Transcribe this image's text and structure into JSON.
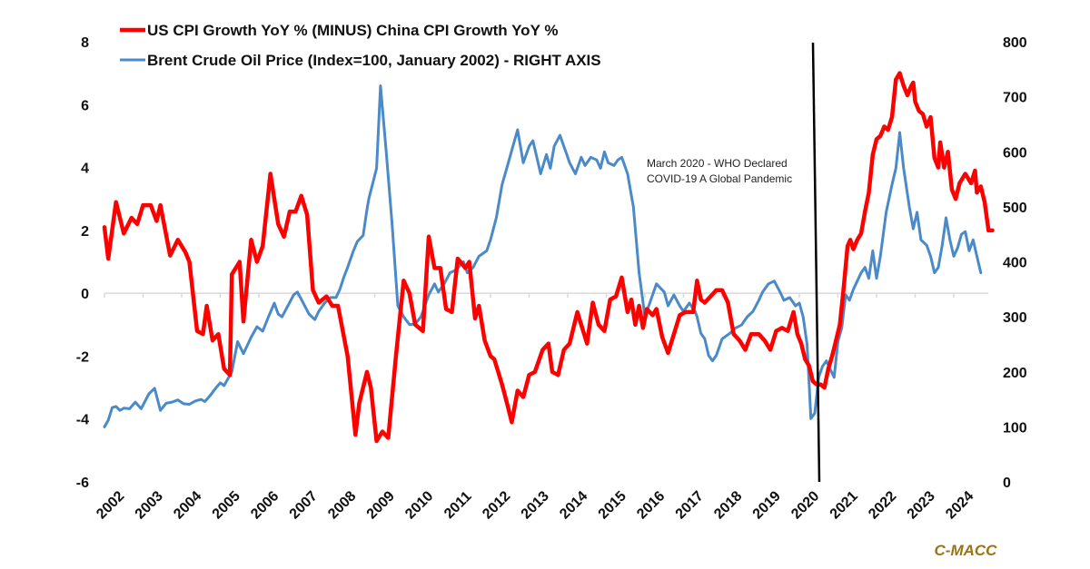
{
  "chart_data": {
    "type": "line",
    "title": "",
    "xlabel": "",
    "ylabel": "",
    "x_tick_labels": [
      "2002",
      "2003",
      "2004",
      "2005",
      "2006",
      "2007",
      "2008",
      "2009",
      "2010",
      "2011",
      "2012",
      "2013",
      "2014",
      "2015",
      "2016",
      "2017",
      "2018",
      "2019",
      "2020",
      "2021",
      "2022",
      "2023",
      "2024"
    ],
    "xlim": [
      2002,
      2024.9
    ],
    "y_left": {
      "ylim": [
        -6,
        8
      ],
      "ticks": [
        "8",
        "6",
        "4",
        "2",
        "0",
        "-2",
        "-4",
        "-6"
      ]
    },
    "y_right": {
      "ylim": [
        0,
        800
      ],
      "ticks": [
        "800",
        "700",
        "600",
        "500",
        "400",
        "300",
        "200",
        "100",
        "0"
      ]
    },
    "grid": false,
    "legend_position": "top-left",
    "legend": [
      {
        "name": "US CPI Growth YoY % (MINUS) China CPI Growth YoY %",
        "color": "#ff0000"
      },
      {
        "name": "Brent Crude Oil Price (Index=100, January 2002) - RIGHT AXIS",
        "color": "#4a8ac8"
      }
    ],
    "annotation": {
      "lines": [
        "March 2020 - WHO Declared",
        "COVID-19 A Global Pandemic"
      ],
      "x_value": 2020.2
    },
    "watermark": "C-MACC",
    "series": [
      {
        "name": "US CPI Growth YoY % (MINUS) China CPI Growth YoY %",
        "axis": "left",
        "color": "#ff0000",
        "points": [
          [
            2002.0,
            2.1
          ],
          [
            2002.1,
            1.1
          ],
          [
            2002.3,
            2.9
          ],
          [
            2002.5,
            1.9
          ],
          [
            2002.7,
            2.4
          ],
          [
            2002.85,
            2.2
          ],
          [
            2003.0,
            2.8
          ],
          [
            2003.2,
            2.8
          ],
          [
            2003.35,
            2.3
          ],
          [
            2003.45,
            2.8
          ],
          [
            2003.7,
            1.2
          ],
          [
            2003.9,
            1.7
          ],
          [
            2004.1,
            1.3
          ],
          [
            2004.2,
            1.0
          ],
          [
            2004.4,
            -1.2
          ],
          [
            2004.55,
            -1.3
          ],
          [
            2004.65,
            -0.4
          ],
          [
            2004.8,
            -1.5
          ],
          [
            2004.95,
            -1.3
          ],
          [
            2005.1,
            -2.4
          ],
          [
            2005.25,
            -2.6
          ],
          [
            2005.3,
            0.6
          ],
          [
            2005.5,
            1.0
          ],
          [
            2005.6,
            -0.9
          ],
          [
            2005.8,
            1.7
          ],
          [
            2005.95,
            1.0
          ],
          [
            2006.1,
            1.5
          ],
          [
            2006.3,
            3.8
          ],
          [
            2006.5,
            2.2
          ],
          [
            2006.65,
            1.8
          ],
          [
            2006.8,
            2.6
          ],
          [
            2006.95,
            2.6
          ],
          [
            2007.1,
            3.1
          ],
          [
            2007.25,
            2.5
          ],
          [
            2007.4,
            0.1
          ],
          [
            2007.55,
            -0.3
          ],
          [
            2007.75,
            -0.1
          ],
          [
            2007.9,
            -0.4
          ],
          [
            2008.05,
            -0.4
          ],
          [
            2008.3,
            -2.0
          ],
          [
            2008.5,
            -4.5
          ],
          [
            2008.6,
            -3.5
          ],
          [
            2008.8,
            -2.5
          ],
          [
            2008.9,
            -3.0
          ],
          [
            2009.05,
            -4.7
          ],
          [
            2009.2,
            -4.4
          ],
          [
            2009.35,
            -4.6
          ],
          [
            2009.55,
            -2.0
          ],
          [
            2009.75,
            0.4
          ],
          [
            2009.9,
            0.0
          ],
          [
            2010.05,
            -1.0
          ],
          [
            2010.25,
            -1.2
          ],
          [
            2010.4,
            1.8
          ],
          [
            2010.55,
            0.8
          ],
          [
            2010.7,
            0.8
          ],
          [
            2010.85,
            -0.5
          ],
          [
            2011.0,
            -0.6
          ],
          [
            2011.15,
            1.1
          ],
          [
            2011.35,
            0.8
          ],
          [
            2011.45,
            1.0
          ],
          [
            2011.6,
            -0.8
          ],
          [
            2011.7,
            -0.4
          ],
          [
            2011.85,
            -1.5
          ],
          [
            2012.0,
            -2.0
          ],
          [
            2012.1,
            -2.1
          ],
          [
            2012.3,
            -2.9
          ],
          [
            2012.45,
            -3.6
          ],
          [
            2012.55,
            -4.1
          ],
          [
            2012.7,
            -3.1
          ],
          [
            2012.85,
            -3.3
          ],
          [
            2013.0,
            -2.6
          ],
          [
            2013.15,
            -2.5
          ],
          [
            2013.35,
            -1.8
          ],
          [
            2013.5,
            -1.6
          ],
          [
            2013.6,
            -2.5
          ],
          [
            2013.75,
            -2.6
          ],
          [
            2013.9,
            -1.8
          ],
          [
            2014.05,
            -1.6
          ],
          [
            2014.25,
            -0.6
          ],
          [
            2014.35,
            -1.0
          ],
          [
            2014.5,
            -1.6
          ],
          [
            2014.65,
            -0.3
          ],
          [
            2014.8,
            -1.0
          ],
          [
            2014.95,
            -1.2
          ],
          [
            2015.1,
            -0.2
          ],
          [
            2015.25,
            -0.1
          ],
          [
            2015.4,
            0.5
          ],
          [
            2015.55,
            -0.6
          ],
          [
            2015.65,
            -0.2
          ],
          [
            2015.75,
            -1.0
          ],
          [
            2015.85,
            -0.4
          ],
          [
            2015.95,
            -1.1
          ],
          [
            2016.05,
            -0.5
          ],
          [
            2016.2,
            -0.7
          ],
          [
            2016.3,
            -0.5
          ],
          [
            2016.45,
            -1.4
          ],
          [
            2016.6,
            -1.9
          ],
          [
            2016.75,
            -1.3
          ],
          [
            2016.9,
            -0.7
          ],
          [
            2017.05,
            -0.6
          ],
          [
            2017.25,
            -0.6
          ],
          [
            2017.35,
            0.4
          ],
          [
            2017.45,
            -0.2
          ],
          [
            2017.55,
            -0.3
          ],
          [
            2017.7,
            -0.1
          ],
          [
            2017.85,
            0.1
          ],
          [
            2018.0,
            0.1
          ],
          [
            2018.15,
            -0.3
          ],
          [
            2018.3,
            -1.3
          ],
          [
            2018.45,
            -1.5
          ],
          [
            2018.6,
            -1.8
          ],
          [
            2018.75,
            -1.3
          ],
          [
            2018.95,
            -1.3
          ],
          [
            2019.1,
            -1.5
          ],
          [
            2019.25,
            -1.8
          ],
          [
            2019.4,
            -1.2
          ],
          [
            2019.55,
            -1.1
          ],
          [
            2019.7,
            -1.2
          ],
          [
            2019.85,
            -0.6
          ]
        ]
      },
      {
        "name": "Brent Crude Oil Price (Index=100, January 2002) - RIGHT AXIS",
        "axis": "right",
        "color": "#4a8ac8",
        "points": []
      }
    ]
  }
}
